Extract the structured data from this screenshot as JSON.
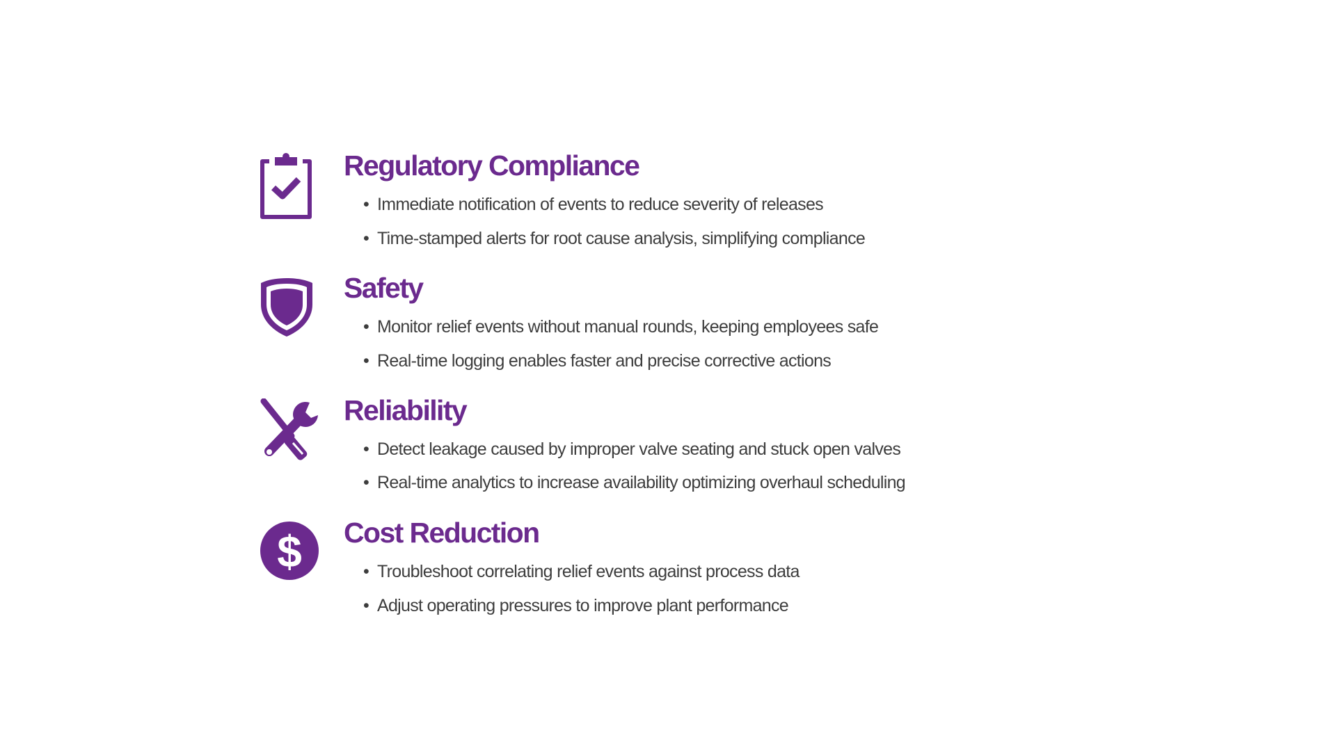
{
  "accent_color": "#6b2a8e",
  "sections": [
    {
      "icon": "clipboard-check-icon",
      "title": "Regulatory Compliance",
      "bullets": [
        "Immediate notification of events to reduce severity of releases",
        "Time-stamped alerts for root cause analysis, simplifying compliance"
      ]
    },
    {
      "icon": "shield-icon",
      "title": "Safety",
      "bullets": [
        "Monitor relief events without manual rounds, keeping employees safe",
        "Real-time logging enables faster and precise corrective actions"
      ]
    },
    {
      "icon": "wrench-screwdriver-icon",
      "title": "Reliability",
      "bullets": [
        "Detect leakage caused by improper valve seating and stuck open valves",
        "Real-time analytics to increase availability optimizing overhaul scheduling"
      ]
    },
    {
      "icon": "dollar-circle-icon",
      "title": "Cost Reduction",
      "bullets": [
        "Troubleshoot correlating relief events against process data",
        "Adjust operating pressures to improve plant performance"
      ]
    }
  ]
}
